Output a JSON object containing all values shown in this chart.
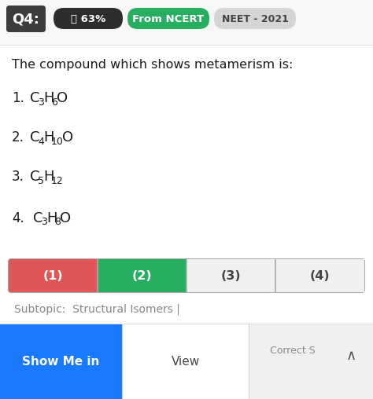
{
  "background_color": "#ffffff",
  "header_bg": "#f5f5f5",
  "q_label": "Q4:",
  "q_label_bg": "#3d3d3d",
  "q_label_color": "#ffffff",
  "badge_63_text": "👍 63%",
  "badge_63_bg": "#2d2d2d",
  "badge_63_color": "#ffffff",
  "badge_ncert_text": "From NCERT",
  "badge_ncert_bg": "#27ae60",
  "badge_ncert_color": "#ffffff",
  "badge_neet_text": "NEET - 2021",
  "badge_neet_bg": "#d5d5d5",
  "badge_neet_color": "#444444",
  "question_text": "The compound which shows metamerism is:",
  "answer_boxes": [
    {
      "label": "(1)",
      "bg": "#e05555",
      "color": "#ffffff"
    },
    {
      "label": "(2)",
      "bg": "#27ae60",
      "color": "#ffffff"
    },
    {
      "label": "(3)",
      "bg": "#f0f0f0",
      "color": "#444444"
    },
    {
      "label": "(4)",
      "bg": "#f0f0f0",
      "color": "#444444"
    }
  ],
  "subtopic_text": "Subtopic:  Structural Isomers |",
  "btn_show_text": "Show Me in",
  "btn_show_bg": "#1a7aff",
  "btn_show_color": "#ffffff",
  "btn_view_text": "View",
  "btn_view_color": "#444444",
  "btn_correct_text": "Correct S",
  "chevron_text": "∧"
}
